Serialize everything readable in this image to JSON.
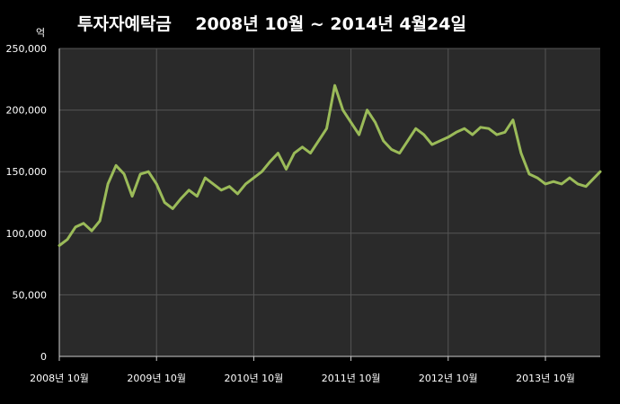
{
  "chart_data": {
    "type": "line",
    "title": "투자자예탁금    2008년 10월 ~ 2014년 4월24일",
    "ylabel": "억",
    "xlabel": "",
    "ylim": [
      0,
      250000
    ],
    "grid": true,
    "line_color": "#9bbb59",
    "plot_background": "#2a2a2a",
    "page_background": "#000000",
    "grid_color": "#555555",
    "y_ticks": [
      {
        "value": 0,
        "label": "0"
      },
      {
        "value": 50000,
        "label": "50,000"
      },
      {
        "value": 100000,
        "label": "100,000"
      },
      {
        "value": 150000,
        "label": "150,000"
      },
      {
        "value": 200000,
        "label": "200,000"
      },
      {
        "value": 250000,
        "label": "250,000"
      }
    ],
    "x_range": [
      "2008-10",
      "2014-04-24"
    ],
    "x_ticks": [
      {
        "value": "2008-10",
        "label": "2008년 10월"
      },
      {
        "value": "2009-10",
        "label": "2009년 10월"
      },
      {
        "value": "2010-10",
        "label": "2010년 10월"
      },
      {
        "value": "2011-10",
        "label": "2011년 10월"
      },
      {
        "value": "2012-10",
        "label": "2012년 10월"
      },
      {
        "value": "2013-10",
        "label": "2013년 10월"
      }
    ],
    "series": [
      {
        "values": [
          [
            "2008-10",
            90000
          ],
          [
            "2008-11",
            95000
          ],
          [
            "2008-12",
            105000
          ],
          [
            "2009-01",
            108000
          ],
          [
            "2009-02",
            102000
          ],
          [
            "2009-03",
            110000
          ],
          [
            "2009-04",
            140000
          ],
          [
            "2009-05",
            155000
          ],
          [
            "2009-06",
            148000
          ],
          [
            "2009-07",
            130000
          ],
          [
            "2009-08",
            148000
          ],
          [
            "2009-09",
            150000
          ],
          [
            "2009-10",
            140000
          ],
          [
            "2009-11",
            125000
          ],
          [
            "2009-12",
            120000
          ],
          [
            "2010-01",
            128000
          ],
          [
            "2010-02",
            135000
          ],
          [
            "2010-03",
            130000
          ],
          [
            "2010-04",
            145000
          ],
          [
            "2010-05",
            140000
          ],
          [
            "2010-06",
            135000
          ],
          [
            "2010-07",
            138000
          ],
          [
            "2010-08",
            132000
          ],
          [
            "2010-09",
            140000
          ],
          [
            "2010-10",
            145000
          ],
          [
            "2010-11",
            150000
          ],
          [
            "2010-12",
            158000
          ],
          [
            "2011-01",
            165000
          ],
          [
            "2011-02",
            152000
          ],
          [
            "2011-03",
            165000
          ],
          [
            "2011-04",
            170000
          ],
          [
            "2011-05",
            165000
          ],
          [
            "2011-06",
            175000
          ],
          [
            "2011-07",
            185000
          ],
          [
            "2011-08",
            220000
          ],
          [
            "2011-09",
            200000
          ],
          [
            "2011-10",
            190000
          ],
          [
            "2011-11",
            180000
          ],
          [
            "2011-12",
            200000
          ],
          [
            "2012-01",
            190000
          ],
          [
            "2012-02",
            175000
          ],
          [
            "2012-03",
            168000
          ],
          [
            "2012-04",
            165000
          ],
          [
            "2012-05",
            175000
          ],
          [
            "2012-06",
            185000
          ],
          [
            "2012-07",
            180000
          ],
          [
            "2012-08",
            172000
          ],
          [
            "2012-09",
            175000
          ],
          [
            "2012-10",
            178000
          ],
          [
            "2012-11",
            182000
          ],
          [
            "2012-12",
            185000
          ],
          [
            "2013-01",
            180000
          ],
          [
            "2013-02",
            186000
          ],
          [
            "2013-03",
            185000
          ],
          [
            "2013-04",
            180000
          ],
          [
            "2013-05",
            182000
          ],
          [
            "2013-06",
            192000
          ],
          [
            "2013-07",
            165000
          ],
          [
            "2013-08",
            148000
          ],
          [
            "2013-09",
            145000
          ],
          [
            "2013-10",
            140000
          ],
          [
            "2013-11",
            142000
          ],
          [
            "2013-12",
            140000
          ],
          [
            "2014-01",
            145000
          ],
          [
            "2014-02",
            140000
          ],
          [
            "2014-03",
            138000
          ],
          [
            "2014-04-24",
            150000
          ]
        ]
      }
    ]
  }
}
